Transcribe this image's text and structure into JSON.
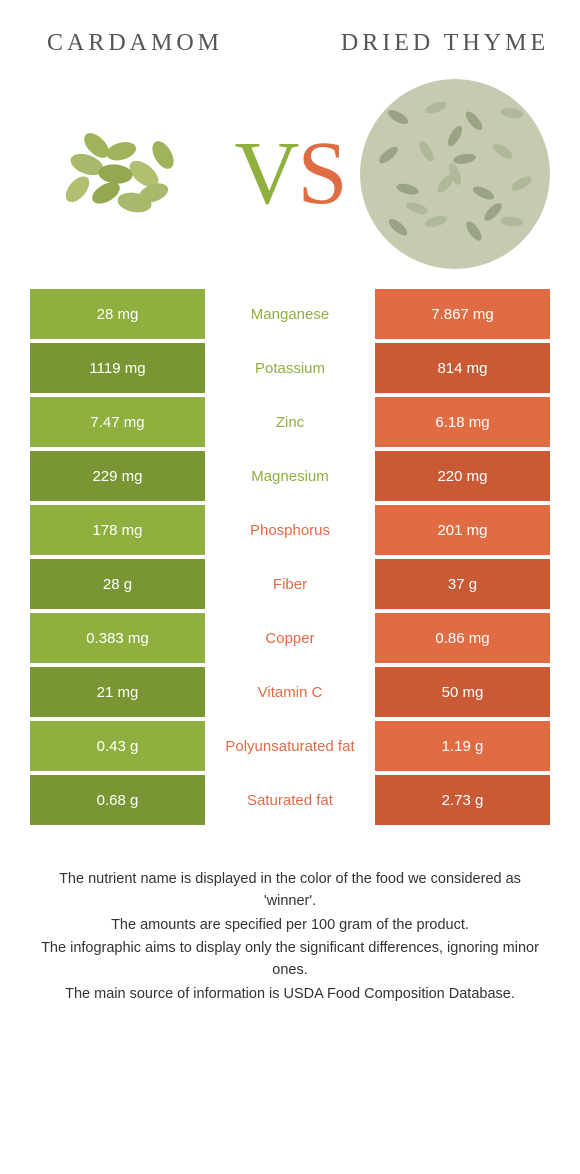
{
  "colors": {
    "left": "#8fb03e",
    "right": "#e06c44",
    "left_dark": "#7a9634",
    "right_dark": "#c95a35"
  },
  "header": {
    "left_title": "CARDAMOM",
    "right_title": "DRIED THYME"
  },
  "vs": {
    "v": "V",
    "s": "S"
  },
  "rows": [
    {
      "left": "28 mg",
      "label": "Manganese",
      "right": "7.867 mg",
      "winner": "left"
    },
    {
      "left": "1119 mg",
      "label": "Potassium",
      "right": "814 mg",
      "winner": "left"
    },
    {
      "left": "7.47 mg",
      "label": "Zinc",
      "right": "6.18 mg",
      "winner": "left"
    },
    {
      "left": "229 mg",
      "label": "Magnesium",
      "right": "220 mg",
      "winner": "left"
    },
    {
      "left": "178 mg",
      "label": "Phosphorus",
      "right": "201 mg",
      "winner": "right"
    },
    {
      "left": "28 g",
      "label": "Fiber",
      "right": "37 g",
      "winner": "right"
    },
    {
      "left": "0.383 mg",
      "label": "Copper",
      "right": "0.86 mg",
      "winner": "right"
    },
    {
      "left": "21 mg",
      "label": "Vitamin C",
      "right": "50 mg",
      "winner": "right"
    },
    {
      "left": "0.43 g",
      "label": "Polyunsaturated fat",
      "right": "1.19 g",
      "winner": "right"
    },
    {
      "left": "0.68 g",
      "label": "Saturated fat",
      "right": "2.73 g",
      "winner": "right"
    }
  ],
  "footnote": {
    "l1": "The nutrient name is displayed in the color of the food we considered as 'winner'.",
    "l2": "The amounts are specified per 100 gram of the product.",
    "l3": "The infographic aims to display only the significant differences, ignoring minor ones.",
    "l4": "The main source of information is USDA Food Composition Database."
  }
}
